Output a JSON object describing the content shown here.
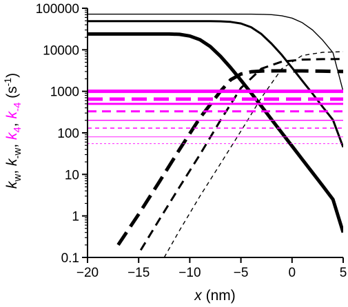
{
  "chart_data": {
    "type": "line",
    "title": "",
    "xlabel": {
      "symbol": "x",
      "rest": " (nm)"
    },
    "ylabel": {
      "parts": [
        {
          "text": "k",
          "sub": "w",
          "color": "#000000"
        },
        {
          "text": ", ",
          "color": "#000000"
        },
        {
          "text": "k",
          "sub": "-w",
          "color": "#000000"
        },
        {
          "text": ", ",
          "color": "#000000"
        },
        {
          "text": "k",
          "sub": "4",
          "color": "#ff00ff"
        },
        {
          "text": ", ",
          "color": "#000000"
        },
        {
          "text": "k",
          "sub": "-4",
          "color": "#ff00ff"
        },
        {
          "text": " (s",
          "color": "#000000"
        },
        {
          "text": "-1",
          "sup": true,
          "color": "#000000"
        },
        {
          "text": ")",
          "color": "#000000"
        }
      ]
    },
    "x_scale": "linear",
    "y_scale": "log",
    "xlim": [
      -20,
      5
    ],
    "ylim": [
      0.1,
      100000
    ],
    "x_ticks": [
      {
        "value": -20,
        "label": "−20"
      },
      {
        "value": -15,
        "label": "−15"
      },
      {
        "value": -10,
        "label": "−10"
      },
      {
        "value": -5,
        "label": "−5"
      },
      {
        "value": 0,
        "label": "0"
      },
      {
        "value": 5,
        "label": "5"
      }
    ],
    "y_ticks": [
      {
        "value": 0.1,
        "label": "0.1"
      },
      {
        "value": 1,
        "label": "1"
      },
      {
        "value": 10,
        "label": "10"
      },
      {
        "value": 100,
        "label": "100"
      },
      {
        "value": 1000,
        "label": "1000"
      },
      {
        "value": 10000,
        "label": "10000"
      },
      {
        "value": 100000,
        "label": "100000"
      }
    ],
    "grid": false,
    "series": [
      {
        "color": "#000000",
        "dash": "solid",
        "weight": "thick",
        "kind": "curve",
        "points": [
          [
            -20,
            24000
          ],
          [
            -12,
            24000
          ],
          [
            -11,
            23500
          ],
          [
            -10,
            21500
          ],
          [
            -9,
            17500
          ],
          [
            -8,
            12000
          ],
          [
            -7,
            7000
          ],
          [
            -6,
            3700
          ],
          [
            -5,
            1850
          ],
          [
            -4,
            910
          ],
          [
            -3,
            440
          ],
          [
            -2,
            210
          ],
          [
            -1,
            100
          ],
          [
            0,
            48
          ],
          [
            1,
            23
          ],
          [
            2,
            11
          ],
          [
            3,
            5.3
          ],
          [
            4,
            2.5
          ],
          [
            5,
            0.4
          ]
        ]
      },
      {
        "color": "#000000",
        "dash": "solid",
        "weight": "medium",
        "kind": "curve",
        "points": [
          [
            -20,
            49000
          ],
          [
            -8,
            49000
          ],
          [
            -7,
            48500
          ],
          [
            -6,
            47000
          ],
          [
            -5,
            43000
          ],
          [
            -4,
            35000
          ],
          [
            -3,
            24000
          ],
          [
            -2,
            14000
          ],
          [
            -1,
            7500
          ],
          [
            0,
            3700
          ],
          [
            1,
            1800
          ],
          [
            2,
            880
          ],
          [
            3,
            420
          ],
          [
            4,
            205
          ],
          [
            5,
            45
          ]
        ]
      },
      {
        "color": "#000000",
        "dash": "solid",
        "weight": "thin",
        "kind": "curve",
        "points": [
          [
            -20,
            72000
          ],
          [
            -4,
            72000
          ],
          [
            -3,
            71500
          ],
          [
            -2,
            70000
          ],
          [
            -1,
            66000
          ],
          [
            0,
            58000
          ],
          [
            1,
            45000
          ],
          [
            2,
            30000
          ],
          [
            3,
            17000
          ],
          [
            4,
            8500
          ],
          [
            5,
            1000
          ]
        ]
      },
      {
        "color": "#000000",
        "dash": "long-dash",
        "weight": "thick",
        "kind": "curve",
        "points": [
          [
            -17,
            0.2
          ],
          [
            -15,
            1.1
          ],
          [
            -13,
            6.5
          ],
          [
            -11,
            40
          ],
          [
            -9,
            230
          ],
          [
            -7,
            1000
          ],
          [
            -6,
            1900
          ],
          [
            -5,
            2600
          ],
          [
            -4,
            2950
          ],
          [
            -3,
            3080
          ],
          [
            -1,
            3120
          ],
          [
            1,
            3100
          ],
          [
            3,
            3050
          ],
          [
            5,
            3000
          ]
        ]
      },
      {
        "color": "#000000",
        "dash": "medium-dash",
        "weight": "medium",
        "kind": "curve",
        "points": [
          [
            -14.8,
            0.15
          ],
          [
            -13,
            0.8
          ],
          [
            -11,
            5
          ],
          [
            -9,
            30
          ],
          [
            -7,
            200
          ],
          [
            -5,
            1200
          ],
          [
            -3,
            3500
          ],
          [
            -1,
            5200
          ],
          [
            1,
            5800
          ],
          [
            3,
            5950
          ],
          [
            5,
            6000
          ]
        ]
      },
      {
        "color": "#000000",
        "dash": "short-dash",
        "weight": "thin",
        "kind": "curve",
        "points": [
          [
            -12.5,
            0.1
          ],
          [
            -11,
            0.45
          ],
          [
            -9,
            3
          ],
          [
            -7,
            18
          ],
          [
            -5,
            110
          ],
          [
            -3,
            700
          ],
          [
            -1,
            3500
          ],
          [
            1,
            7300
          ],
          [
            3,
            8700
          ],
          [
            5,
            9000
          ]
        ]
      },
      {
        "color": "#ff00ff",
        "dash": "solid",
        "weight": "thick",
        "kind": "hline",
        "value": 1000
      },
      {
        "color": "#ff00ff",
        "dash": "long-dash",
        "weight": "thick",
        "kind": "hline",
        "value": 650
      },
      {
        "color": "#ff00ff",
        "dash": "solid",
        "weight": "medium",
        "kind": "hline",
        "value": 500
      },
      {
        "color": "#ff00ff",
        "dash": "medium-dash",
        "weight": "medium",
        "kind": "hline",
        "value": 330
      },
      {
        "color": "#ff00ff",
        "dash": "solid",
        "weight": "thin",
        "kind": "hline",
        "value": 200
      },
      {
        "color": "#ff00ff",
        "dash": "short-dash",
        "weight": "thin",
        "kind": "hline",
        "value": 130
      },
      {
        "color": "#ff00ff",
        "dash": "solid",
        "weight": "hairline",
        "kind": "hline",
        "value": 80
      },
      {
        "color": "#ff00ff",
        "dash": "dotted",
        "weight": "hairline",
        "kind": "hline",
        "value": 55
      }
    ]
  }
}
